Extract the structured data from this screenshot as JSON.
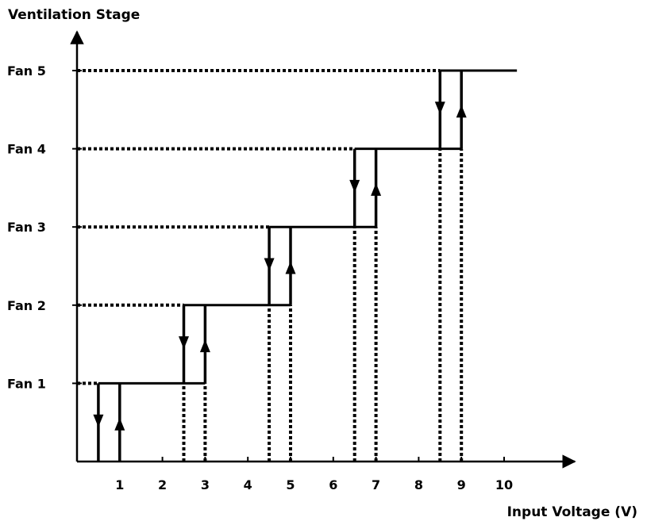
{
  "chart_data": {
    "type": "line",
    "title": "",
    "ylabel": "Ventilation Stage",
    "xlabel": "Input Voltage (V)",
    "xlim": [
      0,
      11.5
    ],
    "x_ticks": [
      1,
      2,
      3,
      4,
      5,
      6,
      7,
      8,
      9,
      10
    ],
    "x_tick_labels": [
      "1",
      "2",
      "3",
      "4",
      "5",
      "6",
      "7",
      "8",
      "9",
      "10"
    ],
    "ylim": [
      0,
      5
    ],
    "y_ticks": [
      1,
      2,
      3,
      4,
      5
    ],
    "y_tick_labels": [
      "Fan 1",
      "Fan 2",
      "Fan 3",
      "Fan 4",
      "Fan 5"
    ],
    "grid": false,
    "stages": [
      {
        "stage": 1,
        "switch_on_voltage": 1,
        "switch_off_voltage": 0.5
      },
      {
        "stage": 2,
        "switch_on_voltage": 3,
        "switch_off_voltage": 2.5
      },
      {
        "stage": 3,
        "switch_on_voltage": 5,
        "switch_off_voltage": 4.5
      },
      {
        "stage": 4,
        "switch_on_voltage": 7,
        "switch_off_voltage": 6.5
      },
      {
        "stage": 5,
        "switch_on_voltage": 9,
        "switch_off_voltage": 8.5
      }
    ],
    "curve_end_voltage": 10.3,
    "line_color": "#000000"
  }
}
